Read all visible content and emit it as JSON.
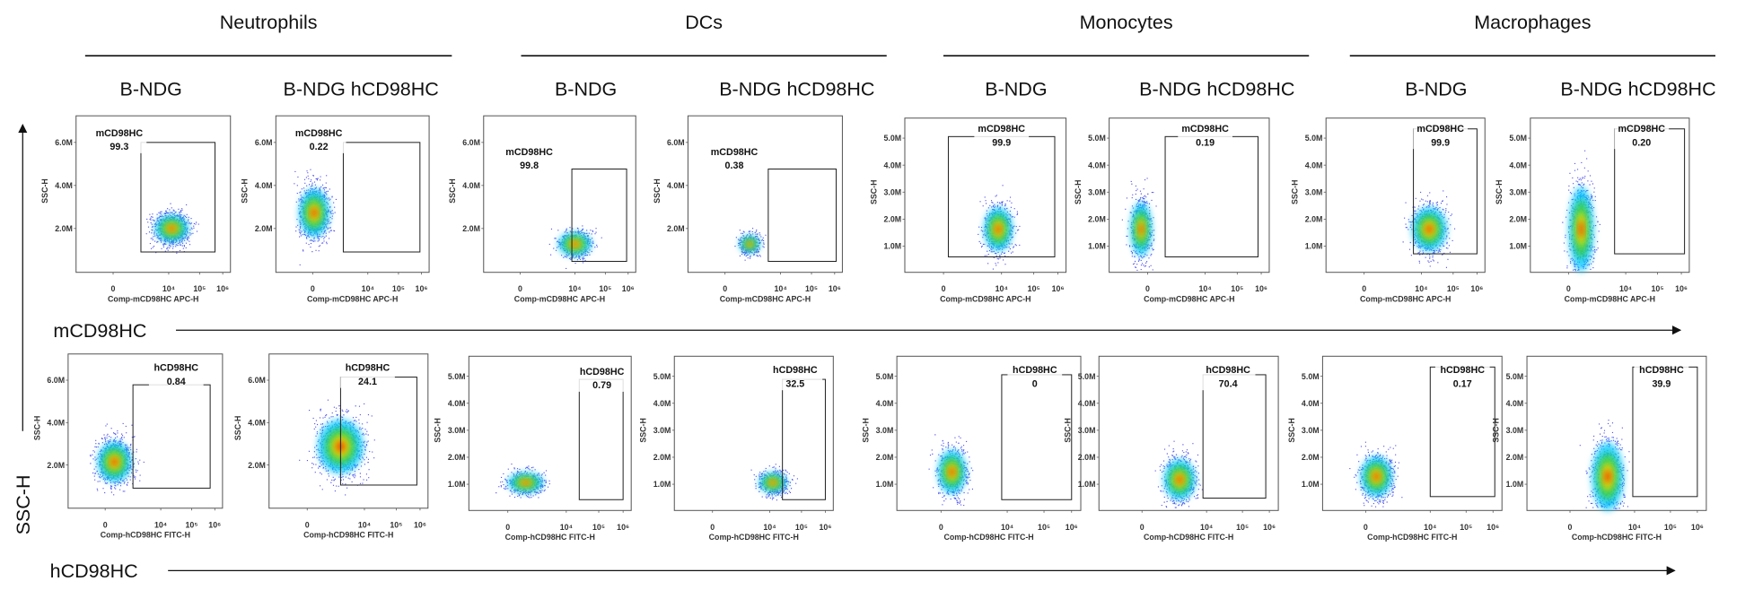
{
  "groups": [
    {
      "title": "Neutrophils",
      "strains": [
        "B-NDG",
        "B-NDG hCD98HC"
      ]
    },
    {
      "title": "DCs",
      "strains": [
        "B-NDG",
        "B-NDG hCD98HC"
      ]
    },
    {
      "title": "Monocytes",
      "strains": [
        "B-NDG",
        "B-NDG hCD98HC"
      ]
    },
    {
      "title": "Macrophages",
      "strains": [
        "B-NDG",
        "B-NDG hCD98HC"
      ]
    }
  ],
  "y_axis_label": "SSC-H",
  "rows": [
    {
      "label": "mCD98HC",
      "panels": [
        {
          "gate": "mCD98HC",
          "percent": "99.3",
          "ylabel": "SSC-H",
          "yticks": [
            "6.0M",
            "4.0M",
            "2.0M"
          ],
          "xticks": [
            "0",
            "10⁴",
            "10⁵",
            "10⁶"
          ],
          "xlabel": "Comp-mCD98HC APC-H"
        },
        {
          "gate": "mCD98HC",
          "percent": "0.22",
          "ylabel": "SSC-H",
          "yticks": [
            "6.0M",
            "4.0M",
            "2.0M"
          ],
          "xticks": [
            "0",
            "10⁴",
            "10⁵",
            "10⁶"
          ],
          "xlabel": "Comp-mCD98HC APC-H"
        },
        {
          "gate": "mCD98HC",
          "percent": "99.8",
          "ylabel": "SSC-H",
          "yticks": [
            "6.0M",
            "4.0M",
            "2.0M"
          ],
          "xticks": [
            "0",
            "10⁴",
            "10⁵",
            "10⁶"
          ],
          "xlabel": "Comp-mCD98HC APC-H"
        },
        {
          "gate": "mCD98HC",
          "percent": "0.38",
          "ylabel": "SSC-H",
          "yticks": [
            "6.0M",
            "4.0M",
            "2.0M"
          ],
          "xticks": [
            "0",
            "10⁴",
            "10⁵",
            "10⁶"
          ],
          "xlabel": "Comp-mCD98HC APC-H"
        },
        {
          "gate": "mCD98HC",
          "percent": "99.9",
          "ylabel": "SSC-H",
          "yticks": [
            "5.0M",
            "4.0M",
            "3.0M",
            "2.0M",
            "1.0M"
          ],
          "xticks": [
            "0",
            "10⁴",
            "10⁵",
            "10⁶"
          ],
          "xlabel": "Comp-mCD98HC APC-H"
        },
        {
          "gate": "mCD98HC",
          "percent": "0.19",
          "ylabel": "SSC-H",
          "yticks": [
            "5.0M",
            "4.0M",
            "3.0M",
            "2.0M",
            "1.0M"
          ],
          "xticks": [
            "0",
            "10⁴",
            "10⁵",
            "10⁶"
          ],
          "xlabel": "Comp-mCD98HC APC-H"
        },
        {
          "gate": "mCD98HC",
          "percent": "99.9",
          "ylabel": "SSC-H",
          "yticks": [
            "5.0M",
            "4.0M",
            "3.0M",
            "2.0M",
            "1.0M"
          ],
          "xticks": [
            "0",
            "10⁴",
            "10⁵",
            "10⁶"
          ],
          "xlabel": "Comp-mCD98HC APC-H"
        },
        {
          "gate": "mCD98HC",
          "percent": "0.20",
          "ylabel": "SSC-H",
          "yticks": [
            "5.0M",
            "4.0M",
            "3.0M",
            "2.0M",
            "1.0M"
          ],
          "xticks": [
            "0",
            "10⁴",
            "10⁵",
            "10⁶"
          ],
          "xlabel": "Comp-mCD98HC APC-H"
        }
      ]
    },
    {
      "label": "hCD98HC",
      "panels": [
        {
          "gate": "hCD98HC",
          "percent": "0.84",
          "ylabel": "SSC-H",
          "yticks": [
            "6.0M",
            "4.0M",
            "2.0M"
          ],
          "xticks": [
            "0",
            "10⁴",
            "10⁵",
            "10⁶"
          ],
          "xlabel": "Comp-hCD98HC FITC-H"
        },
        {
          "gate": "hCD98HC",
          "percent": "24.1",
          "ylabel": "SSC-H",
          "yticks": [
            "6.0M",
            "4.0M",
            "2.0M"
          ],
          "xticks": [
            "0",
            "10⁴",
            "10⁵",
            "10⁶"
          ],
          "xlabel": "Comp-hCD98HC FITC-H"
        },
        {
          "gate": "hCD98HC",
          "percent": "0.79",
          "ylabel": "SSC-H",
          "yticks": [
            "5.0M",
            "4.0M",
            "3.0M",
            "2.0M",
            "1.0M"
          ],
          "xticks": [
            "0",
            "10⁴",
            "10⁵",
            "10⁶"
          ],
          "xlabel": "Comp-hCD98HC FITC-H"
        },
        {
          "gate": "hCD98HC",
          "percent": "32.5",
          "ylabel": "SSC-H",
          "yticks": [
            "5.0M",
            "4.0M",
            "3.0M",
            "2.0M",
            "1.0M"
          ],
          "xticks": [
            "0",
            "10⁴",
            "10⁵",
            "10⁶"
          ],
          "xlabel": "Comp-hCD98HC FITC-H"
        },
        {
          "gate": "hCD98HC",
          "percent": "0",
          "ylabel": "SSC-H",
          "yticks": [
            "5.0M",
            "4.0M",
            "3.0M",
            "2.0M",
            "1.0M"
          ],
          "xticks": [
            "0",
            "10⁴",
            "10⁵",
            "10⁶"
          ],
          "xlabel": "Comp-hCD98HC FITC-H"
        },
        {
          "gate": "hCD98HC",
          "percent": "70.4",
          "ylabel": "SSC-H",
          "yticks": [
            "5.0M",
            "4.0M",
            "3.0M",
            "2.0M",
            "1.0M"
          ],
          "xticks": [
            "0",
            "10⁴",
            "10⁵",
            "10⁶"
          ],
          "xlabel": "Comp-hCD98HC FITC-H"
        },
        {
          "gate": "hCD98HC",
          "percent": "0.17",
          "ylabel": "SSC-H",
          "yticks": [
            "5.0M",
            "4.0M",
            "3.0M",
            "2.0M",
            "1.0M"
          ],
          "xticks": [
            "0",
            "10⁴",
            "10⁵",
            "10⁶"
          ],
          "xlabel": "Comp-hCD98HC FITC-H"
        },
        {
          "gate": "hCD98HC",
          "percent": "39.9",
          "ylabel": "SSC-H",
          "yticks": [
            "5.0M",
            "4.0M",
            "3.0M",
            "2.0M",
            "1.0M"
          ],
          "xticks": [
            "0",
            "10⁴",
            "10⁵",
            "10⁶"
          ],
          "xlabel": "Comp-hCD98HC FITC-H"
        }
      ]
    }
  ]
}
